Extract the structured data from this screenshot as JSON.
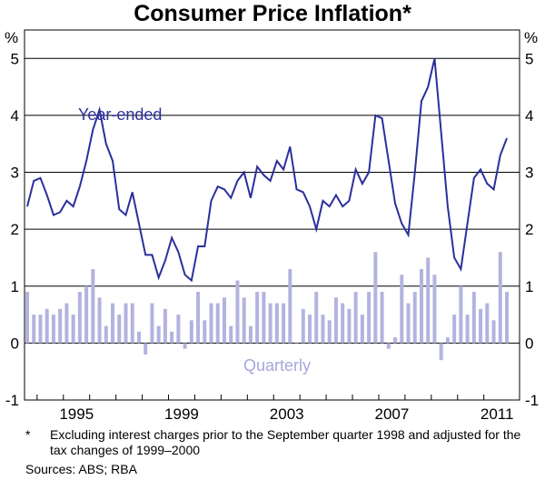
{
  "title": "Consumer Price Inflation*",
  "footnote_marker": "*",
  "footnote": "Excluding interest charges prior to the September quarter 1998 and adjusted for the tax changes of 1999–2000",
  "sources": "Sources: ABS; RBA",
  "colors": {
    "line": "#2a2f9c",
    "bars": "#b3b3e0",
    "label_line": "#2a2f9c",
    "label_bars": "#a7a7dc"
  },
  "chart_data": {
    "type": "bar+line",
    "ylabel_left": "%",
    "ylabel_right": "%",
    "ylim": [
      -1,
      5.5
    ],
    "yticks": [
      "-1",
      "0",
      "1",
      "2",
      "3",
      "4",
      "5"
    ],
    "xticks": [
      "1995",
      "1999",
      "2003",
      "2007",
      "2011"
    ],
    "grid": true,
    "series": [
      {
        "name": "Year-ended",
        "type": "line",
        "values": [
          2.4,
          2.85,
          2.9,
          2.6,
          2.25,
          2.3,
          2.5,
          2.4,
          2.75,
          3.2,
          3.75,
          4.1,
          3.5,
          3.2,
          2.35,
          2.25,
          2.65,
          2.1,
          1.55,
          1.55,
          1.15,
          1.45,
          1.85,
          1.6,
          1.2,
          1.1,
          1.7,
          1.7,
          2.5,
          2.75,
          2.7,
          2.55,
          2.85,
          3.0,
          2.55,
          3.1,
          2.95,
          2.85,
          3.2,
          3.05,
          3.45,
          2.7,
          2.65,
          2.4,
          2.0,
          2.5,
          2.4,
          2.6,
          2.4,
          2.5,
          3.05,
          2.8,
          3.0,
          4.0,
          3.95,
          3.2,
          2.45,
          2.1,
          1.9,
          3.0,
          4.25,
          4.5,
          5.0,
          3.7,
          2.4,
          1.5,
          1.3,
          2.1,
          2.9,
          3.05,
          2.8,
          2.7,
          3.3,
          3.6
        ]
      },
      {
        "name": "Quarterly",
        "type": "bar",
        "values": [
          0.9,
          0.5,
          0.5,
          0.6,
          0.5,
          0.6,
          0.7,
          0.5,
          0.9,
          1.0,
          1.3,
          0.8,
          0.3,
          0.7,
          0.5,
          0.7,
          0.7,
          0.2,
          -0.2,
          0.7,
          0.3,
          0.6,
          0.2,
          0.5,
          -0.1,
          0.4,
          0.9,
          0.4,
          0.7,
          0.7,
          0.8,
          0.3,
          1.1,
          0.8,
          0.3,
          0.9,
          0.9,
          0.7,
          0.7,
          0.7,
          1.3,
          0.0,
          0.6,
          0.5,
          0.9,
          0.5,
          0.4,
          0.8,
          0.7,
          0.6,
          0.9,
          0.5,
          0.9,
          1.6,
          0.9,
          -0.1,
          0.1,
          1.2,
          0.7,
          0.9,
          1.3,
          1.5,
          1.2,
          -0.3,
          0.1,
          0.5,
          1.0,
          0.5,
          0.9,
          0.6,
          0.7,
          0.4,
          1.6,
          0.9
        ]
      }
    ],
    "annotations": [
      "Year-ended",
      "Quarterly"
    ]
  }
}
